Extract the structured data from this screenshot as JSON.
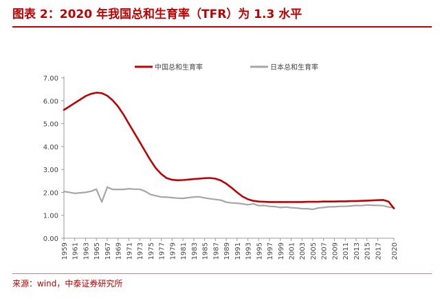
{
  "figure_title": "图表 2：2020 年我国总和生育率（TFR）为 1.3 水平",
  "source_note": "来源：wind，中泰证券研究所",
  "colors": {
    "title_red": "#c00000",
    "china_line": "#c00000",
    "japan_line": "#a6a6a6",
    "axis": "#999999"
  },
  "chart_data": {
    "type": "line",
    "title": "",
    "xlabel": "",
    "ylabel": "",
    "ylim": [
      0,
      7
    ],
    "yticks": [
      "0.00",
      "1.00",
      "2.00",
      "3.00",
      "4.00",
      "5.00",
      "6.00",
      "7.00"
    ],
    "xticks": [
      "1959",
      "1961",
      "1963",
      "1965",
      "1967",
      "1969",
      "1971",
      "1973",
      "1975",
      "1977",
      "1979",
      "1981",
      "1983",
      "1985",
      "1987",
      "1989",
      "1991",
      "1993",
      "1995",
      "1997",
      "1999",
      "2001",
      "2003",
      "2005",
      "2007",
      "2009",
      "2011",
      "2013",
      "2015",
      "2017",
      "2020"
    ],
    "legend_position": "top",
    "grid": false,
    "series": [
      {
        "name": "中国总和生育率",
        "x": [
          1959,
          1960,
          1961,
          1962,
          1963,
          1964,
          1965,
          1966,
          1967,
          1968,
          1969,
          1970,
          1971,
          1972,
          1973,
          1974,
          1975,
          1976,
          1977,
          1978,
          1979,
          1980,
          1981,
          1982,
          1983,
          1984,
          1985,
          1986,
          1987,
          1988,
          1989,
          1990,
          1991,
          1992,
          1993,
          1994,
          1995,
          1996,
          1997,
          1998,
          1999,
          2000,
          2001,
          2002,
          2003,
          2004,
          2005,
          2006,
          2007,
          2008,
          2009,
          2010,
          2011,
          2012,
          2013,
          2014,
          2015,
          2016,
          2017,
          2018,
          2019,
          2020
        ],
        "values": [
          5.6,
          5.75,
          5.9,
          6.05,
          6.2,
          6.3,
          6.35,
          6.33,
          6.22,
          6.02,
          5.75,
          5.4,
          5.0,
          4.6,
          4.2,
          3.8,
          3.4,
          3.05,
          2.8,
          2.62,
          2.55,
          2.53,
          2.54,
          2.56,
          2.58,
          2.6,
          2.62,
          2.63,
          2.6,
          2.52,
          2.38,
          2.2,
          2.0,
          1.82,
          1.7,
          1.63,
          1.6,
          1.59,
          1.58,
          1.58,
          1.58,
          1.58,
          1.58,
          1.58,
          1.58,
          1.59,
          1.59,
          1.59,
          1.6,
          1.6,
          1.6,
          1.61,
          1.61,
          1.62,
          1.62,
          1.63,
          1.64,
          1.65,
          1.66,
          1.67,
          1.6,
          1.3
        ]
      },
      {
        "name": "日本总和生育率",
        "x": [
          1959,
          1960,
          1961,
          1962,
          1963,
          1964,
          1965,
          1966,
          1967,
          1968,
          1969,
          1970,
          1971,
          1972,
          1973,
          1974,
          1975,
          1976,
          1977,
          1978,
          1979,
          1980,
          1981,
          1982,
          1983,
          1984,
          1985,
          1986,
          1987,
          1988,
          1989,
          1990,
          1991,
          1992,
          1993,
          1994,
          1995,
          1996,
          1997,
          1998,
          1999,
          2000,
          2001,
          2002,
          2003,
          2004,
          2005,
          2006,
          2007,
          2008,
          2009,
          2010,
          2011,
          2012,
          2013,
          2014,
          2015,
          2016,
          2017,
          2018,
          2019,
          2020
        ],
        "values": [
          2.04,
          2.0,
          1.96,
          1.98,
          2.0,
          2.05,
          2.14,
          1.58,
          2.23,
          2.13,
          2.13,
          2.13,
          2.16,
          2.14,
          2.14,
          2.05,
          1.91,
          1.85,
          1.8,
          1.79,
          1.77,
          1.75,
          1.74,
          1.77,
          1.8,
          1.81,
          1.76,
          1.72,
          1.69,
          1.66,
          1.57,
          1.54,
          1.53,
          1.5,
          1.46,
          1.5,
          1.42,
          1.43,
          1.39,
          1.38,
          1.34,
          1.36,
          1.33,
          1.32,
          1.29,
          1.29,
          1.26,
          1.32,
          1.34,
          1.37,
          1.37,
          1.39,
          1.39,
          1.41,
          1.43,
          1.42,
          1.45,
          1.44,
          1.43,
          1.42,
          1.36,
          1.33
        ]
      }
    ]
  }
}
